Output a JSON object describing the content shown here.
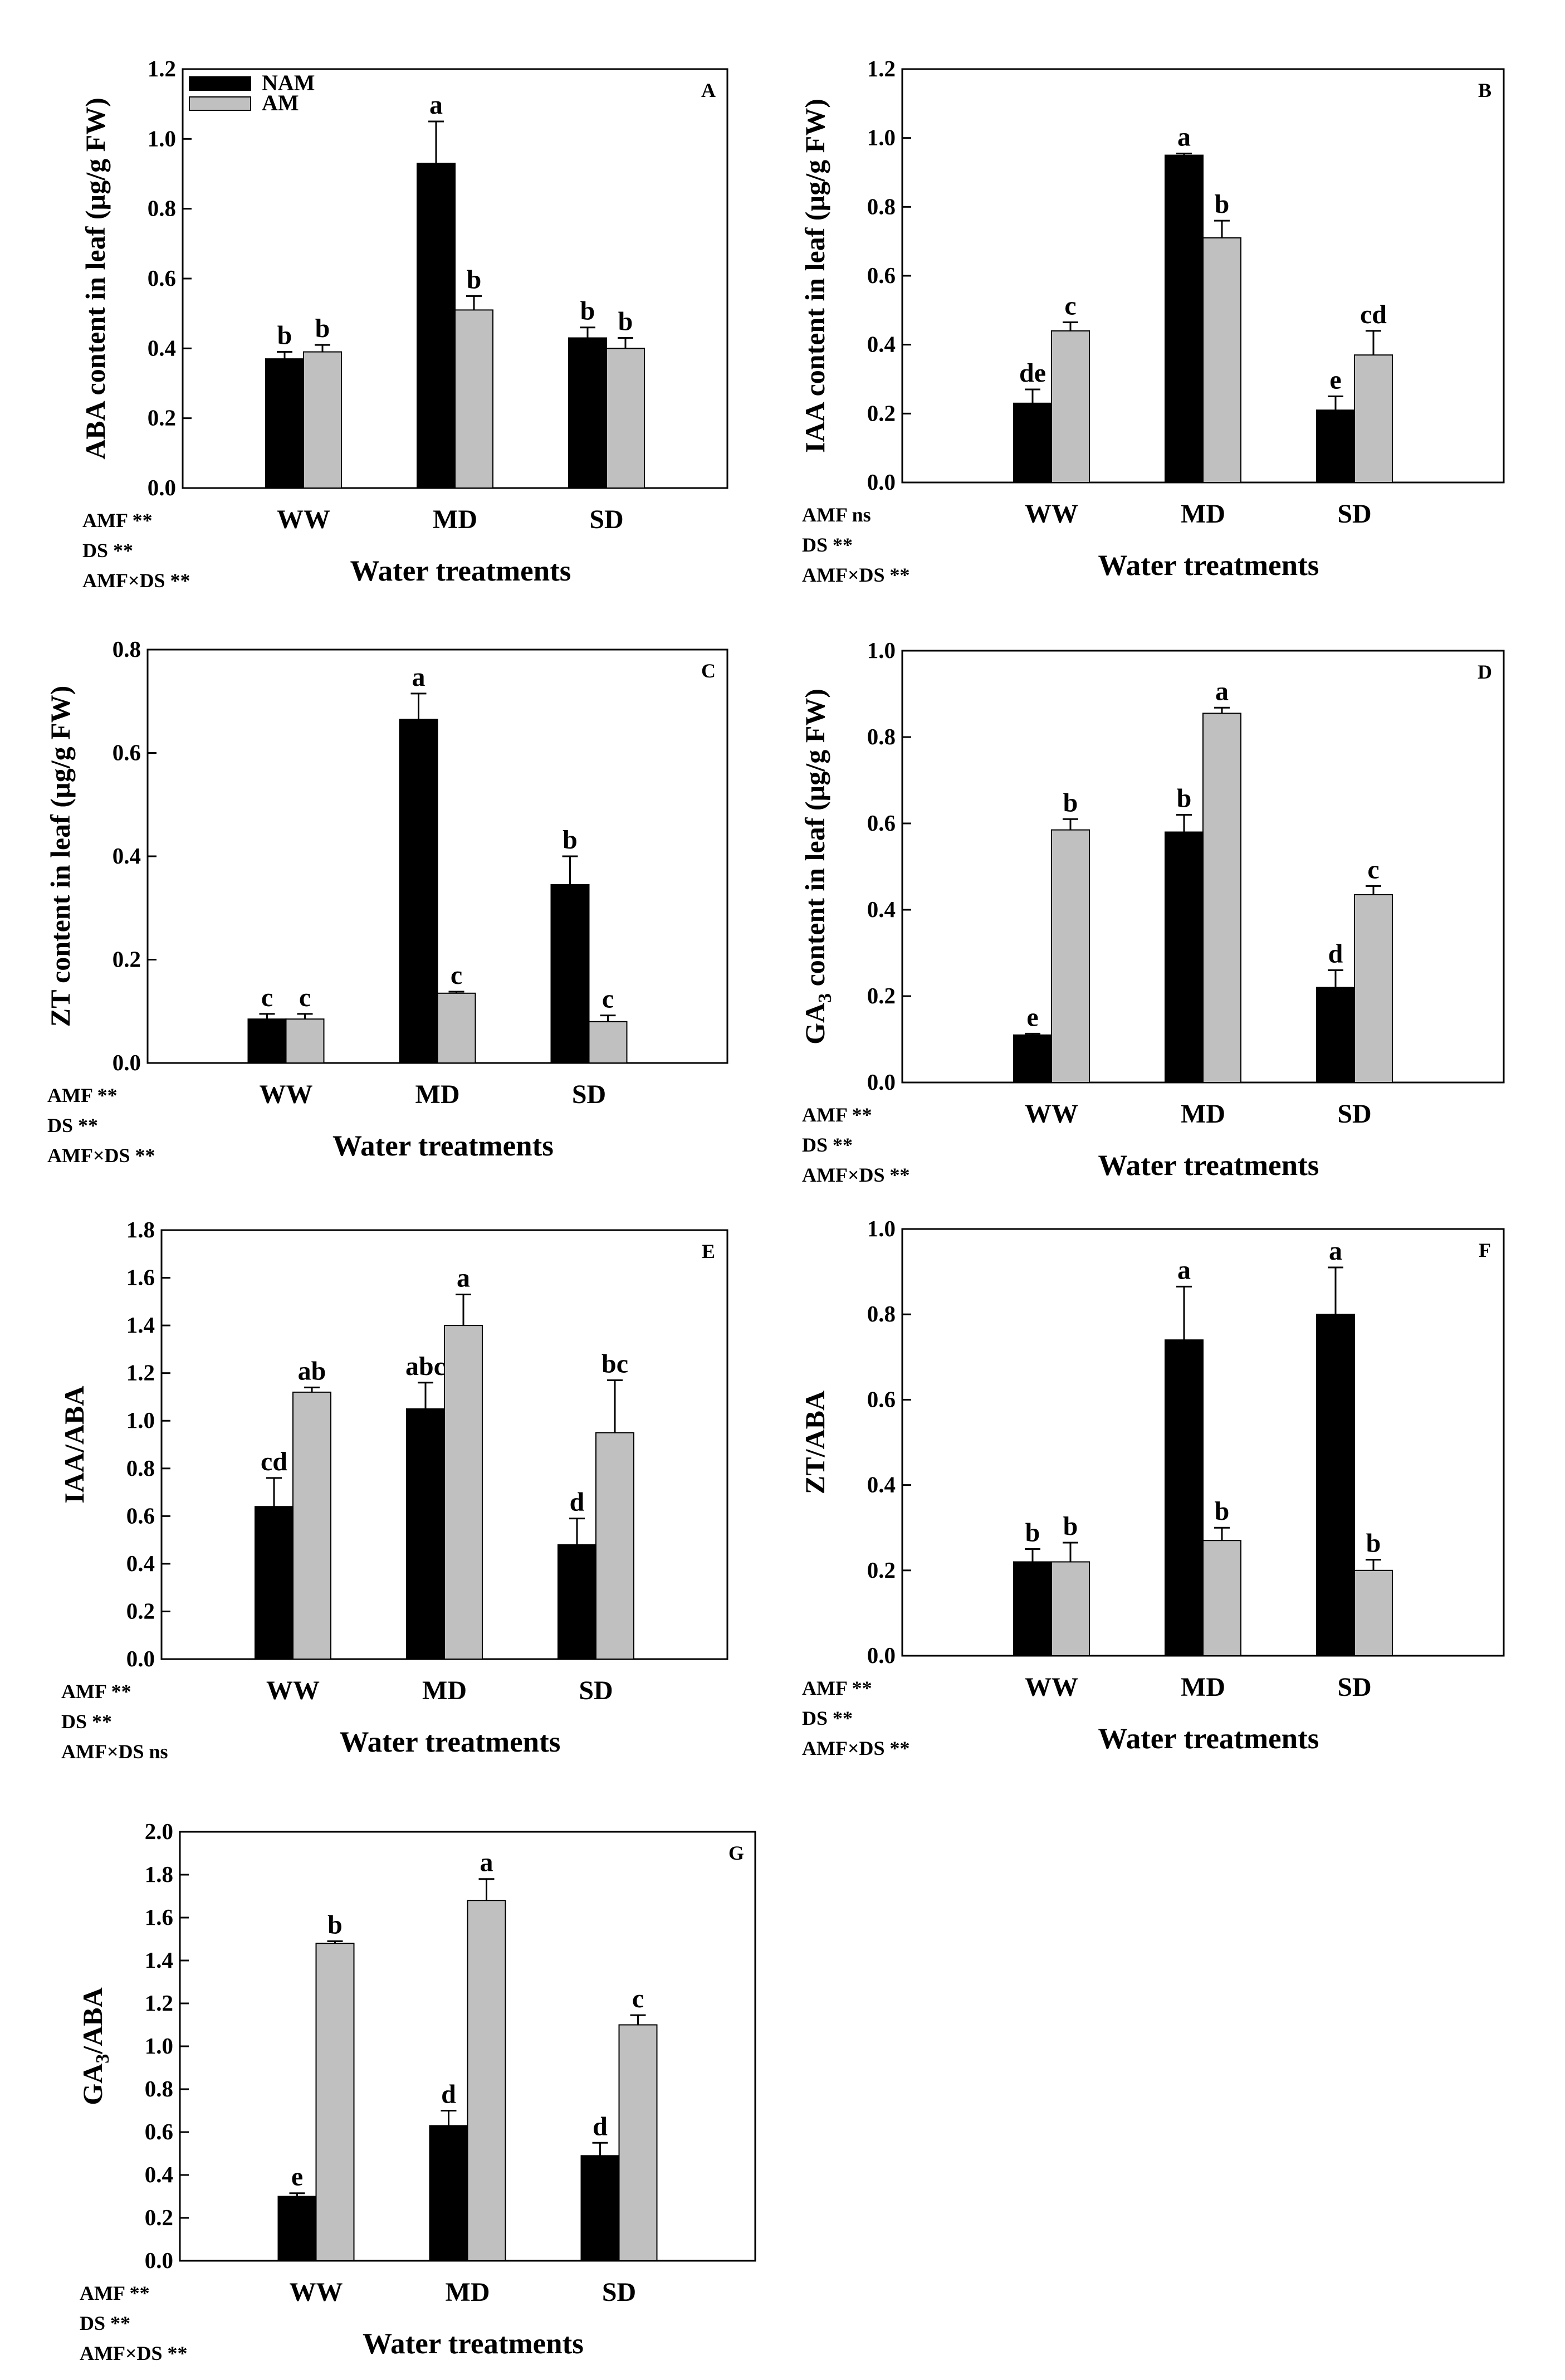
{
  "colors": {
    "NAM": "#000000",
    "AM": "#c0c0c0",
    "axis": "#000000"
  },
  "chart_data": [
    {
      "type": "bar",
      "panel": "A",
      "title": "",
      "ylabel": "ABA content in leaf (µg/g FW)",
      "xlabel": "Water treatments",
      "categories": [
        "WW",
        "MD",
        "SD"
      ],
      "ylim": [
        0,
        1.2
      ],
      "yticks": [
        "0.0",
        "0.2",
        "0.4",
        "0.6",
        "0.8",
        "1.0",
        "1.2"
      ],
      "legend": [
        "NAM",
        "AM"
      ],
      "series": [
        {
          "name": "NAM",
          "values": [
            0.37,
            0.93,
            0.43
          ],
          "errors": [
            0.02,
            0.12,
            0.03
          ],
          "letters": [
            "b",
            "a",
            "b"
          ]
        },
        {
          "name": "AM",
          "values": [
            0.39,
            0.51,
            0.4
          ],
          "errors": [
            0.02,
            0.04,
            0.03
          ],
          "letters": [
            "b",
            "b",
            "b"
          ]
        }
      ],
      "stats": [
        "AMF **",
        "DS **",
        "AMF×DS **"
      ]
    },
    {
      "type": "bar",
      "panel": "B",
      "ylabel": "IAA content in leaf (µg/g FW)",
      "xlabel": "Water treatments",
      "categories": [
        "WW",
        "MD",
        "SD"
      ],
      "ylim": [
        0,
        1.2
      ],
      "yticks": [
        "0.0",
        "0.2",
        "0.4",
        "0.6",
        "0.8",
        "1.0",
        "1.2"
      ],
      "series": [
        {
          "name": "NAM",
          "values": [
            0.23,
            0.95,
            0.21
          ],
          "errors": [
            0.04,
            0.005,
            0.04
          ],
          "letters": [
            "de",
            "a",
            "e"
          ]
        },
        {
          "name": "AM",
          "values": [
            0.44,
            0.71,
            0.37
          ],
          "errors": [
            0.025,
            0.05,
            0.07
          ],
          "letters": [
            "c",
            "b",
            "cd"
          ]
        }
      ],
      "stats": [
        "AMF ns",
        "DS **",
        "AMF×DS **"
      ]
    },
    {
      "type": "bar",
      "panel": "C",
      "ylabel": "ZT content in leaf (µg/g FW)",
      "xlabel": "Water treatments",
      "categories": [
        "WW",
        "MD",
        "SD"
      ],
      "ylim": [
        0,
        0.8
      ],
      "yticks": [
        "0.0",
        "0.2",
        "0.4",
        "0.6",
        "0.8"
      ],
      "series": [
        {
          "name": "NAM",
          "values": [
            0.085,
            0.665,
            0.345
          ],
          "errors": [
            0.01,
            0.05,
            0.055
          ],
          "letters": [
            "c",
            "a",
            "b"
          ]
        },
        {
          "name": "AM",
          "values": [
            0.085,
            0.135,
            0.08
          ],
          "errors": [
            0.01,
            0.003,
            0.012
          ],
          "letters": [
            "c",
            "c",
            "c"
          ]
        }
      ],
      "stats": [
        "AMF **",
        "DS **",
        "AMF×DS **"
      ]
    },
    {
      "type": "bar",
      "panel": "D",
      "ylabel": "GA3 content in leaf (µg/g FW)",
      "xlabel": "Water treatments",
      "categories": [
        "WW",
        "MD",
        "SD"
      ],
      "ylim": [
        0,
        1.0
      ],
      "yticks": [
        "0.0",
        "0.2",
        "0.4",
        "0.6",
        "0.8",
        "1.0"
      ],
      "series": [
        {
          "name": "NAM",
          "values": [
            0.11,
            0.58,
            0.22
          ],
          "errors": [
            0.003,
            0.04,
            0.04
          ],
          "letters": [
            "e",
            "b",
            "d"
          ]
        },
        {
          "name": "AM",
          "values": [
            0.585,
            0.855,
            0.435
          ],
          "errors": [
            0.025,
            0.013,
            0.02
          ],
          "letters": [
            "b",
            "a",
            "c"
          ]
        }
      ],
      "stats": [
        "AMF **",
        "DS **",
        "AMF×DS **"
      ]
    },
    {
      "type": "bar",
      "panel": "E",
      "ylabel": "IAA/ABA",
      "xlabel": "Water treatments",
      "categories": [
        "WW",
        "MD",
        "SD"
      ],
      "ylim": [
        0,
        1.8
      ],
      "yticks": [
        "0.0",
        "0.2",
        "0.4",
        "0.6",
        "0.8",
        "1.0",
        "1.2",
        "1.4",
        "1.6",
        "1.8"
      ],
      "series": [
        {
          "name": "NAM",
          "values": [
            0.64,
            1.05,
            0.48
          ],
          "errors": [
            0.12,
            0.11,
            0.11
          ],
          "letters": [
            "cd",
            "abc",
            "d"
          ]
        },
        {
          "name": "AM",
          "values": [
            1.12,
            1.4,
            0.95
          ],
          "errors": [
            0.02,
            0.13,
            0.22
          ],
          "letters": [
            "ab",
            "a",
            "bc"
          ]
        }
      ],
      "stats": [
        "AMF **",
        "DS **",
        "AMF×DS ns"
      ]
    },
    {
      "type": "bar",
      "panel": "F",
      "ylabel": "ZT/ABA",
      "xlabel": "Water treatments",
      "categories": [
        "WW",
        "MD",
        "SD"
      ],
      "ylim": [
        0,
        1.0
      ],
      "yticks": [
        "0.0",
        "0.2",
        "0.4",
        "0.6",
        "0.8",
        "1.0"
      ],
      "series": [
        {
          "name": "NAM",
          "values": [
            0.22,
            0.74,
            0.8
          ],
          "errors": [
            0.03,
            0.125,
            0.11
          ],
          "letters": [
            "b",
            "a",
            "a"
          ]
        },
        {
          "name": "AM",
          "values": [
            0.22,
            0.27,
            0.2
          ],
          "errors": [
            0.045,
            0.03,
            0.025
          ],
          "letters": [
            "b",
            "b",
            "b"
          ]
        }
      ],
      "stats": [
        "AMF **",
        "DS **",
        "AMF×DS **"
      ]
    },
    {
      "type": "bar",
      "panel": "G",
      "ylabel": "GA3/ABA",
      "xlabel": "Water treatments",
      "categories": [
        "WW",
        "MD",
        "SD"
      ],
      "ylim": [
        0,
        2.0
      ],
      "yticks": [
        "0.0",
        "0.2",
        "0.4",
        "0.6",
        "0.8",
        "1.0",
        "1.2",
        "1.4",
        "1.6",
        "1.8",
        "2.0"
      ],
      "series": [
        {
          "name": "NAM",
          "values": [
            0.3,
            0.63,
            0.49
          ],
          "errors": [
            0.015,
            0.07,
            0.06
          ],
          "letters": [
            "e",
            "d",
            "d"
          ]
        },
        {
          "name": "AM",
          "values": [
            1.48,
            1.68,
            1.1
          ],
          "errors": [
            0.01,
            0.1,
            0.045
          ],
          "letters": [
            "b",
            "a",
            "c"
          ]
        }
      ],
      "stats": [
        "AMF **",
        "DS **",
        "AMF×DS **"
      ]
    }
  ]
}
